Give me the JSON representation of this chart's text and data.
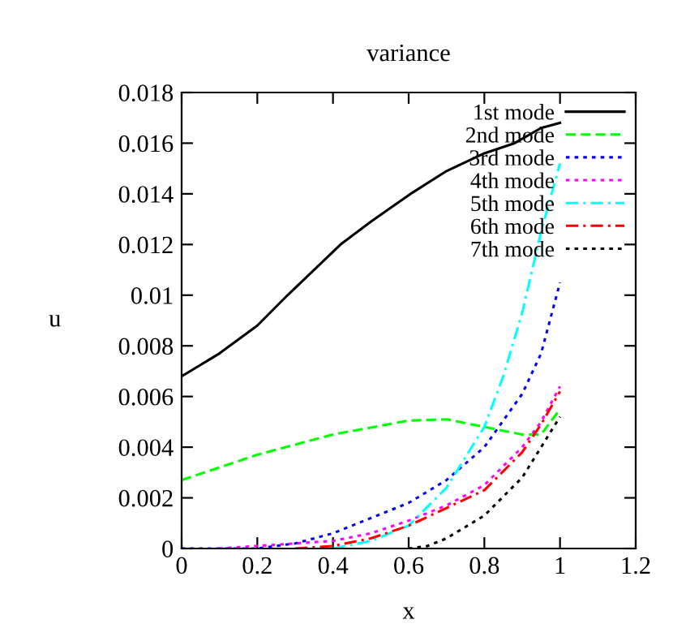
{
  "chart_data": {
    "type": "line",
    "title": "variance",
    "xlabel": "x",
    "ylabel": "u",
    "xlim": [
      0,
      1.2
    ],
    "xticks": [
      0,
      0.2,
      0.4,
      0.6,
      0.8,
      1,
      1.2
    ],
    "ylim": [
      0,
      0.018
    ],
    "yticks": [
      0,
      0.002,
      0.004,
      0.006,
      0.008,
      0.01,
      0.012,
      0.014,
      0.016,
      0.018
    ],
    "grid": false,
    "legend": "top right",
    "marker": "none",
    "series": [
      {
        "name": "1st mode",
        "color": "#000000",
        "line_style": "solid",
        "x": [
          0,
          0.1,
          0.2,
          0.28,
          0.42,
          0.5,
          0.605,
          0.7,
          0.8,
          0.88,
          0.95,
          1.0
        ],
        "values": [
          0.0068,
          0.0077,
          0.0088,
          0.01,
          0.012,
          0.0129,
          0.014,
          0.0149,
          0.0156,
          0.016,
          0.0166,
          0.0168
        ]
      },
      {
        "name": "2nd mode",
        "color": "#00ff00",
        "line_style": "dashed",
        "x": [
          0,
          0.2,
          0.4,
          0.6,
          0.7,
          0.8,
          0.9,
          0.95,
          1.0
        ],
        "values": [
          0.0027,
          0.0037,
          0.0045,
          0.00505,
          0.0051,
          0.0048,
          0.0045,
          0.0045,
          0.0055
        ]
      },
      {
        "name": "3rd mode",
        "color": "#0000ff",
        "line_style": "dotted",
        "x": [
          0,
          0.2,
          0.3,
          0.4,
          0.5,
          0.6,
          0.7,
          0.8,
          0.9,
          0.95,
          1.0
        ],
        "values": [
          0,
          0,
          0.0002,
          0.0006,
          0.0012,
          0.0018,
          0.0027,
          0.004,
          0.0061,
          0.0077,
          0.0105
        ]
      },
      {
        "name": "4th mode",
        "color": "#ff00ff",
        "line_style": "dotted",
        "x": [
          0.1,
          0.2,
          0.4,
          0.5,
          0.6,
          0.7,
          0.8,
          0.9,
          0.95,
          1.0
        ],
        "values": [
          0,
          0.0001,
          0.0003,
          0.0006,
          0.0011,
          0.0017,
          0.0025,
          0.004,
          0.005,
          0.0064
        ]
      },
      {
        "name": "5th mode",
        "color": "#00ffff",
        "line_style": "dashdot",
        "x": [
          0.4,
          0.5,
          0.6,
          0.7,
          0.8,
          0.85,
          0.9,
          0.95,
          1.0
        ],
        "values": [
          0,
          0.0003,
          0.0009,
          0.0024,
          0.0048,
          0.0068,
          0.0093,
          0.0125,
          0.0152
        ]
      },
      {
        "name": "6th mode",
        "color": "#ff0000",
        "line_style": "dashdot",
        "x": [
          0.3,
          0.4,
          0.5,
          0.6,
          0.7,
          0.8,
          0.9,
          0.95,
          1.0
        ],
        "values": [
          0,
          0.0001,
          0.0004,
          0.0009,
          0.0016,
          0.0023,
          0.0038,
          0.0049,
          0.0062
        ]
      },
      {
        "name": "7th mode",
        "color": "#000000",
        "line_style": "dotted",
        "x": [
          0.6,
          0.65,
          0.7,
          0.8,
          0.9,
          0.95,
          1.0
        ],
        "values": [
          0,
          0.0001,
          0.0004,
          0.0013,
          0.0028,
          0.004,
          0.0052
        ]
      }
    ]
  }
}
